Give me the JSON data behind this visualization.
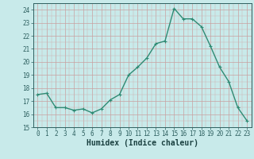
{
  "x": [
    0,
    1,
    2,
    3,
    4,
    5,
    6,
    7,
    8,
    9,
    10,
    11,
    12,
    13,
    14,
    15,
    16,
    17,
    18,
    19,
    20,
    21,
    22,
    23
  ],
  "y": [
    17.5,
    17.6,
    16.5,
    16.5,
    16.3,
    16.4,
    16.1,
    16.4,
    17.1,
    17.5,
    19.0,
    19.6,
    20.3,
    21.4,
    21.6,
    24.1,
    23.3,
    23.3,
    22.7,
    21.2,
    19.6,
    18.5,
    16.5,
    15.5
  ],
  "line_color": "#2e8b74",
  "marker": "+",
  "marker_size": 3,
  "line_width": 1.0,
  "bg_color": "#c8eaea",
  "grid_color_major": "#b0c8c8",
  "grid_color_minor": "#c0d8d8",
  "xlabel": "Humidex (Indice chaleur)",
  "ylim": [
    15,
    24.5
  ],
  "xlim": [
    -0.5,
    23.5
  ],
  "yticks": [
    15,
    16,
    17,
    18,
    19,
    20,
    21,
    22,
    23,
    24
  ],
  "xticks": [
    0,
    1,
    2,
    3,
    4,
    5,
    6,
    7,
    8,
    9,
    10,
    11,
    12,
    13,
    14,
    15,
    16,
    17,
    18,
    19,
    20,
    21,
    22,
    23
  ],
  "tick_label_fontsize": 5.5,
  "xlabel_fontsize": 7.0
}
